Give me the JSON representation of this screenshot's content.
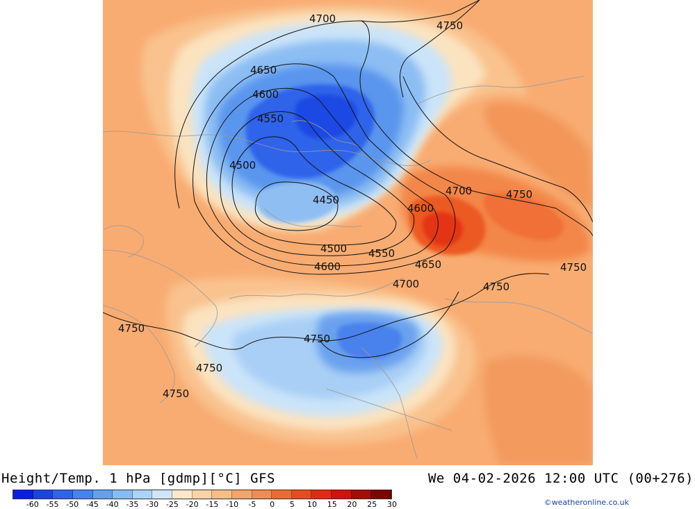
{
  "map": {
    "title": "Height/Temp. 1 hPa [gdmp][°C] GFS",
    "valid_time": "We 04-02-2026 12:00 UTC (00+276)",
    "credit": "©weatheronline.co.uk",
    "contour_labels": [
      {
        "id": "c1",
        "text": "4700"
      },
      {
        "id": "c2",
        "text": "4750"
      },
      {
        "id": "c3",
        "text": "4650"
      },
      {
        "id": "c4",
        "text": "4600"
      },
      {
        "id": "c5",
        "text": "4550"
      },
      {
        "id": "c6",
        "text": "4500"
      },
      {
        "id": "c7",
        "text": "4450"
      },
      {
        "id": "c8",
        "text": "4700"
      },
      {
        "id": "c9",
        "text": "4750"
      },
      {
        "id": "c10",
        "text": "4600"
      },
      {
        "id": "c11",
        "text": "4500"
      },
      {
        "id": "c12",
        "text": "4550"
      },
      {
        "id": "c13",
        "text": "4600"
      },
      {
        "id": "c14",
        "text": "4650"
      },
      {
        "id": "c15",
        "text": "4700"
      },
      {
        "id": "c16",
        "text": "4750"
      },
      {
        "id": "c17",
        "text": "4750"
      },
      {
        "id": "c18",
        "text": "4750"
      },
      {
        "id": "c19",
        "text": "4750"
      },
      {
        "id": "c20",
        "text": "4750"
      },
      {
        "id": "c21",
        "text": "4750"
      }
    ],
    "colorbar": {
      "colors": [
        "#0a1fdc",
        "#1c42e6",
        "#2f62ee",
        "#4682f0",
        "#62a0f2",
        "#86bcf4",
        "#abd3f7",
        "#cfe6fa",
        "#fbe8c9",
        "#f9d2a6",
        "#f8bd86",
        "#f6a56a",
        "#f48a4e",
        "#f06a2e",
        "#ea4a1c",
        "#e22a10",
        "#cc1409",
        "#a80a05",
        "#7e0303"
      ],
      "ticks": [
        "-60",
        "-55",
        "-50",
        "-45",
        "-40",
        "-35",
        "-30",
        "-25",
        "-20",
        "-15",
        "-10",
        "-5",
        "0",
        "5",
        "10",
        "15",
        "20",
        "25",
        "30"
      ]
    }
  }
}
